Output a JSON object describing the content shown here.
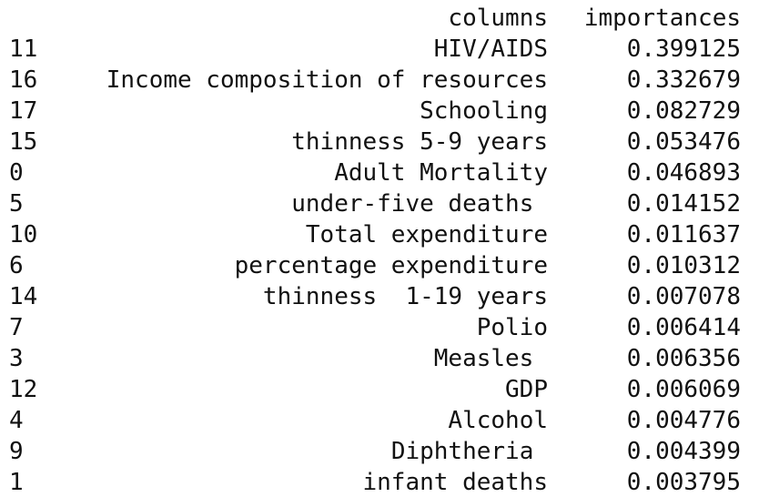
{
  "table": {
    "header": {
      "index": "",
      "columns": "columns",
      "importances": "importances"
    },
    "rows": [
      {
        "index": "11",
        "columns": "HIV/AIDS",
        "importances": "0.399125"
      },
      {
        "index": "16",
        "columns": "Income composition of resources",
        "importances": "0.332679"
      },
      {
        "index": "17",
        "columns": "Schooling",
        "importances": "0.082729"
      },
      {
        "index": "15",
        "columns": "thinness 5-9 years",
        "importances": "0.053476"
      },
      {
        "index": "0",
        "columns": "Adult Mortality",
        "importances": "0.046893"
      },
      {
        "index": "5",
        "columns": "under-five deaths ",
        "importances": "0.014152"
      },
      {
        "index": "10",
        "columns": "Total expenditure",
        "importances": "0.011637"
      },
      {
        "index": "6",
        "columns": "percentage expenditure",
        "importances": "0.010312"
      },
      {
        "index": "14",
        "columns": "thinness  1-19 years",
        "importances": "0.007078"
      },
      {
        "index": "7",
        "columns": "Polio",
        "importances": "0.006414"
      },
      {
        "index": "3",
        "columns": "Measles ",
        "importances": "0.006356"
      },
      {
        "index": "12",
        "columns": "GDP",
        "importances": "0.006069"
      },
      {
        "index": "4",
        "columns": "Alcohol",
        "importances": "0.004776"
      },
      {
        "index": "9",
        "columns": "Diphtheria ",
        "importances": "0.004399"
      },
      {
        "index": "1",
        "columns": "infant deaths",
        "importances": "0.003795"
      }
    ]
  }
}
